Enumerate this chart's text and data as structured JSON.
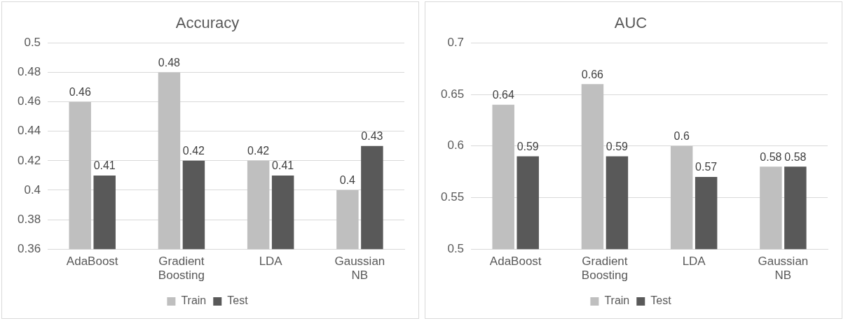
{
  "chart_data": [
    {
      "type": "bar",
      "title": "Accuracy",
      "categories": [
        "AdaBoost",
        "Gradient Boosting",
        "LDA",
        "Gaussian NB"
      ],
      "series": [
        {
          "name": "Train",
          "color": "#bfbfbf",
          "values": [
            0.46,
            0.48,
            0.42,
            0.4
          ]
        },
        {
          "name": "Test",
          "color": "#595959",
          "values": [
            0.41,
            0.42,
            0.41,
            0.43
          ]
        }
      ],
      "ylim": [
        0.36,
        0.5
      ],
      "yticks": [
        0.36,
        0.38,
        0.4,
        0.42,
        0.44,
        0.46,
        0.48,
        0.5
      ],
      "grid": "y",
      "legend": "bottom",
      "data_labels": true
    },
    {
      "type": "bar",
      "title": "AUC",
      "categories": [
        "AdaBoost",
        "Gradient Boosting",
        "LDA",
        "Gaussian NB"
      ],
      "series": [
        {
          "name": "Train",
          "color": "#bfbfbf",
          "values": [
            0.64,
            0.66,
            0.6,
            0.58
          ]
        },
        {
          "name": "Test",
          "color": "#595959",
          "values": [
            0.59,
            0.59,
            0.57,
            0.58
          ]
        }
      ],
      "ylim": [
        0.5,
        0.7
      ],
      "yticks": [
        0.5,
        0.55,
        0.6,
        0.65,
        0.7
      ],
      "grid": "y",
      "legend": "bottom",
      "data_labels": true
    }
  ]
}
